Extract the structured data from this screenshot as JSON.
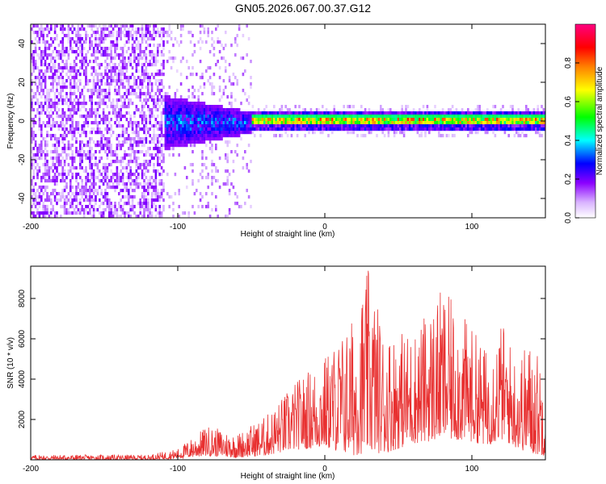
{
  "title": "GN05.2026.067.00.37.G12",
  "chart_data": [
    {
      "type": "heatmap",
      "xlabel": "Height of straight line (km)",
      "ylabel": "Frequency (Hz)",
      "xlim": [
        -200,
        150
      ],
      "ylim": [
        -50,
        50
      ],
      "xticks": [
        -200,
        -100,
        0,
        100
      ],
      "yticks": [
        -40,
        -20,
        0,
        20,
        40
      ],
      "colorbar": {
        "label": "Normalized spectral amplitude",
        "ticks": [
          0.0,
          0.2,
          0.4,
          0.6,
          0.8
        ],
        "colors": [
          "#ffffff",
          "#d9b3ff",
          "#8b00ff",
          "#0000ff",
          "#00ffff",
          "#00ff00",
          "#ffff00",
          "#ff8000",
          "#ff0000",
          "#ff0080"
        ]
      },
      "description_regions": [
        {
          "x_range": [
            -200,
            -110
          ],
          "freq_range": [
            -50,
            50
          ],
          "amplitude": [
            0.05,
            0.2
          ]
        },
        {
          "x_range": [
            -110,
            -50
          ],
          "freq_range": [
            -12,
            12
          ],
          "amplitude": [
            0.2,
            0.4
          ]
        },
        {
          "x_range": [
            -50,
            150
          ],
          "freq_center": 1,
          "freq_width": 4,
          "amplitude": [
            0.4,
            0.9
          ]
        }
      ]
    },
    {
      "type": "line",
      "xlabel": "Height of straight line (km)",
      "ylabel": "SNR (10 * v/v)",
      "xlim": [
        -200,
        150
      ],
      "ylim": [
        0,
        9600
      ],
      "xticks": [
        -200,
        -100,
        0,
        100
      ],
      "yticks": [
        2000,
        4000,
        6000,
        8000
      ],
      "color": "#e83030",
      "envelope": {
        "x": [
          -200,
          -120,
          -100,
          -80,
          -60,
          -40,
          -20,
          0,
          20,
          30,
          40,
          60,
          80,
          100,
          110,
          120,
          130,
          140,
          150
        ],
        "max": [
          250,
          250,
          550,
          1700,
          1300,
          2200,
          3900,
          5200,
          7200,
          9600,
          6500,
          6400,
          8500,
          6600,
          5500,
          7000,
          5200,
          6000,
          4800
        ],
        "min": [
          0,
          0,
          50,
          200,
          100,
          200,
          500,
          600,
          200,
          400,
          300,
          800,
          1000,
          900,
          700,
          1000,
          600,
          300,
          200
        ]
      }
    }
  ]
}
